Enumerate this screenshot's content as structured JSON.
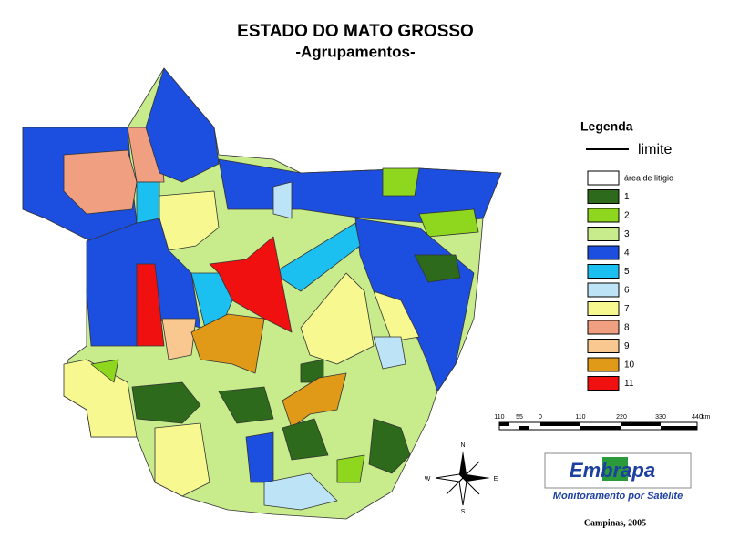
{
  "header": {
    "title": "ESTADO DO MATO GROSSO",
    "subtitle": "-Agrupamentos-"
  },
  "legend": {
    "title": "Legenda",
    "line_label": "limite",
    "items": [
      {
        "label": "área de litígio",
        "color": "#ffffff"
      },
      {
        "label": "1",
        "color": "#2d6a1c"
      },
      {
        "label": "2",
        "color": "#8fd61e"
      },
      {
        "label": "3",
        "color": "#c8ec8c"
      },
      {
        "label": "4",
        "color": "#1c4ee0"
      },
      {
        "label": "5",
        "color": "#1cc0f0"
      },
      {
        "label": "6",
        "color": "#bce4f6"
      },
      {
        "label": "7",
        "color": "#f8f890"
      },
      {
        "label": "8",
        "color": "#f0a080"
      },
      {
        "label": "9",
        "color": "#f8c890"
      },
      {
        "label": "10",
        "color": "#e09a18"
      },
      {
        "label": "11",
        "color": "#f01010"
      }
    ]
  },
  "scale": {
    "labels": [
      "110",
      "55",
      "0",
      "110",
      "220",
      "330",
      "440"
    ],
    "unit": "km"
  },
  "compass": {
    "north": "N",
    "south": "S",
    "east": "E",
    "west": "W"
  },
  "logo": {
    "name": "Embrapa",
    "tagline": "Monitoramento por Satélite"
  },
  "footer": "Campinas, 2005"
}
